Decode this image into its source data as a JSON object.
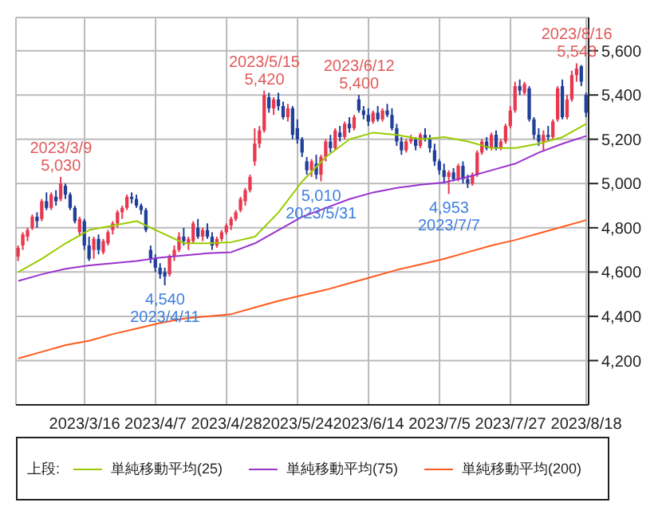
{
  "chart_data": {
    "type": "candlestick",
    "categories": [
      null,
      null,
      null,
      null,
      null,
      null,
      null,
      null,
      null,
      null,
      null,
      null,
      null,
      null,
      "2023/3/16",
      null,
      null,
      null,
      null,
      null,
      null,
      null,
      null,
      null,
      null,
      null,
      null,
      null,
      null,
      "2023/4/7",
      null,
      null,
      null,
      null,
      null,
      null,
      null,
      null,
      null,
      null,
      null,
      null,
      null,
      null,
      "2023/4/28",
      null,
      null,
      null,
      null,
      null,
      null,
      null,
      null,
      null,
      null,
      null,
      null,
      null,
      null,
      "2023/5/24",
      null,
      null,
      null,
      null,
      null,
      null,
      null,
      null,
      null,
      null,
      null,
      null,
      null,
      null,
      "2023/6/14",
      null,
      null,
      null,
      null,
      null,
      null,
      null,
      null,
      null,
      null,
      null,
      null,
      null,
      null,
      "2023/7/5",
      null,
      null,
      null,
      null,
      null,
      null,
      null,
      null,
      null,
      null,
      null,
      null,
      null,
      null,
      "2023/7/27",
      null,
      null,
      null,
      null,
      null,
      null,
      null,
      null,
      null,
      null,
      null,
      null,
      null,
      null,
      null,
      "2023/8/18"
    ],
    "ohlc": [
      [
        4670,
        4720,
        4650,
        4710
      ],
      [
        4720,
        4780,
        4700,
        4770
      ],
      [
        4760,
        4800,
        4740,
        4790
      ],
      [
        4800,
        4860,
        4790,
        4850
      ],
      [
        4850,
        4870,
        4800,
        4830
      ],
      [
        4840,
        4930,
        4830,
        4920
      ],
      [
        4920,
        4960,
        4880,
        4890
      ],
      [
        4890,
        4960,
        4880,
        4950
      ],
      [
        4940,
        4970,
        4900,
        4920
      ],
      [
        4930,
        5030,
        4920,
        5000
      ],
      [
        4990,
        5000,
        4930,
        4950
      ],
      [
        4950,
        4960,
        4880,
        4890
      ],
      [
        4890,
        4900,
        4820,
        4830
      ],
      [
        4780,
        4850,
        4760,
        4840
      ],
      [
        4830,
        4840,
        4700,
        4720
      ],
      [
        4720,
        4760,
        4650,
        4660
      ],
      [
        4700,
        4760,
        4660,
        4750
      ],
      [
        4750,
        4770,
        4680,
        4700
      ],
      [
        4690,
        4750,
        4680,
        4740
      ],
      [
        4730,
        4790,
        4720,
        4780
      ],
      [
        4790,
        4830,
        4770,
        4820
      ],
      [
        4820,
        4880,
        4800,
        4870
      ],
      [
        4870,
        4900,
        4840,
        4890
      ],
      [
        4890,
        4950,
        4880,
        4940
      ],
      [
        4940,
        4960,
        4910,
        4930
      ],
      [
        4930,
        4950,
        4890,
        4900
      ],
      [
        4900,
        4910,
        4860,
        4880
      ],
      [
        4880,
        4890,
        4780,
        4790
      ],
      [
        4700,
        4720,
        4640,
        4660
      ],
      [
        4660,
        4680,
        4600,
        4620
      ],
      [
        4620,
        4640,
        4570,
        4590
      ],
      [
        4600,
        4620,
        4540,
        4580
      ],
      [
        4590,
        4680,
        4580,
        4670
      ],
      [
        4670,
        4720,
        4650,
        4700
      ],
      [
        4700,
        4780,
        4690,
        4760
      ],
      [
        4760,
        4800,
        4720,
        4740
      ],
      [
        4730,
        4760,
        4700,
        4750
      ],
      [
        4740,
        4830,
        4730,
        4820
      ],
      [
        4800,
        4840,
        4750,
        4760
      ],
      [
        4760,
        4800,
        4740,
        4790
      ],
      [
        4790,
        4820,
        4750,
        4760
      ],
      [
        4760,
        4780,
        4700,
        4720
      ],
      [
        4720,
        4760,
        4710,
        4750
      ],
      [
        4750,
        4790,
        4740,
        4780
      ],
      [
        4780,
        4820,
        4770,
        4810
      ],
      [
        4810,
        4850,
        4790,
        4840
      ],
      [
        4840,
        4880,
        4830,
        4870
      ],
      [
        4880,
        4940,
        4870,
        4930
      ],
      [
        4920,
        4980,
        4900,
        4970
      ],
      [
        4970,
        5040,
        4960,
        5030
      ],
      [
        5100,
        5250,
        5080,
        5180
      ],
      [
        5180,
        5260,
        5160,
        5240
      ],
      [
        5240,
        5420,
        5230,
        5400
      ],
      [
        5390,
        5410,
        5320,
        5340
      ],
      [
        5340,
        5390,
        5310,
        5380
      ],
      [
        5380,
        5410,
        5330,
        5350
      ],
      [
        5350,
        5370,
        5290,
        5300
      ],
      [
        5300,
        5360,
        5280,
        5340
      ],
      [
        5340,
        5350,
        5200,
        5220
      ],
      [
        5250,
        5290,
        5180,
        5200
      ],
      [
        5200,
        5210,
        5120,
        5140
      ],
      [
        5100,
        5120,
        5040,
        5060
      ],
      [
        5060,
        5110,
        5030,
        5100
      ],
      [
        5090,
        5130,
        5020,
        5040
      ],
      [
        5040,
        5130,
        5010,
        5120
      ],
      [
        5120,
        5200,
        5100,
        5190
      ],
      [
        5190,
        5220,
        5140,
        5160
      ],
      [
        5160,
        5250,
        5150,
        5240
      ],
      [
        5230,
        5260,
        5190,
        5210
      ],
      [
        5210,
        5280,
        5200,
        5270
      ],
      [
        5270,
        5300,
        5230,
        5250
      ],
      [
        5250,
        5310,
        5240,
        5300
      ],
      [
        5380,
        5400,
        5320,
        5330
      ],
      [
        5330,
        5350,
        5290,
        5310
      ],
      [
        5310,
        5340,
        5260,
        5280
      ],
      [
        5280,
        5330,
        5270,
        5320
      ],
      [
        5320,
        5350,
        5280,
        5290
      ],
      [
        5290,
        5340,
        5280,
        5330
      ],
      [
        5330,
        5360,
        5300,
        5310
      ],
      [
        5310,
        5340,
        5240,
        5250
      ],
      [
        5250,
        5270,
        5170,
        5190
      ],
      [
        5190,
        5210,
        5130,
        5150
      ],
      [
        5150,
        5200,
        5140,
        5190
      ],
      [
        5190,
        5220,
        5180,
        5200
      ],
      [
        5200,
        5210,
        5150,
        5170
      ],
      [
        5170,
        5230,
        5160,
        5220
      ],
      [
        5220,
        5250,
        5190,
        5200
      ],
      [
        5200,
        5220,
        5140,
        5160
      ],
      [
        5150,
        5180,
        5080,
        5100
      ],
      [
        5100,
        5110,
        5040,
        5060
      ],
      [
        5060,
        5090,
        5000,
        5030
      ],
      [
        5030,
        5060,
        4953,
        5050
      ],
      [
        5050,
        5070,
        5010,
        5020
      ],
      [
        5020,
        5090,
        5010,
        5080
      ],
      [
        5080,
        5100,
        5000,
        5020
      ],
      [
        5020,
        5040,
        4980,
        5000
      ],
      [
        5000,
        5050,
        4990,
        5040
      ],
      [
        5040,
        5150,
        5030,
        5140
      ],
      [
        5140,
        5200,
        5130,
        5190
      ],
      [
        5190,
        5210,
        5150,
        5160
      ],
      [
        5160,
        5230,
        5150,
        5220
      ],
      [
        5220,
        5240,
        5150,
        5160
      ],
      [
        5160,
        5200,
        5150,
        5190
      ],
      [
        5190,
        5270,
        5180,
        5260
      ],
      [
        5260,
        5350,
        5250,
        5330
      ],
      [
        5330,
        5460,
        5320,
        5440
      ],
      [
        5440,
        5470,
        5400,
        5420
      ],
      [
        5410,
        5460,
        5400,
        5450
      ],
      [
        5430,
        5440,
        5280,
        5290
      ],
      [
        5290,
        5300,
        5200,
        5220
      ],
      [
        5220,
        5250,
        5170,
        5190
      ],
      [
        5190,
        5240,
        5150,
        5220
      ],
      [
        5220,
        5260,
        5190,
        5210
      ],
      [
        5210,
        5290,
        5200,
        5280
      ],
      [
        5290,
        5440,
        5280,
        5430
      ],
      [
        5440,
        5470,
        5290,
        5300
      ],
      [
        5300,
        5400,
        5290,
        5380
      ],
      [
        5380,
        5510,
        5370,
        5490
      ],
      [
        5490,
        5543,
        5460,
        5520
      ],
      [
        5530,
        5535,
        5440,
        5460
      ],
      [
        5400,
        5410,
        5300,
        5320
      ]
    ],
    "series": [
      {
        "name": "単純移動平均(25)",
        "type": "line",
        "color": "#99cc00",
        "values": [
          4600,
          null,
          null,
          null,
          null,
          4660,
          null,
          null,
          null,
          null,
          4730,
          null,
          null,
          null,
          null,
          4790,
          null,
          null,
          null,
          null,
          4810,
          null,
          null,
          null,
          null,
          4830,
          null,
          null,
          null,
          null,
          4780,
          null,
          null,
          null,
          null,
          4730,
          null,
          null,
          null,
          null,
          4730,
          null,
          null,
          null,
          null,
          4735,
          null,
          null,
          null,
          null,
          4760,
          null,
          null,
          null,
          null,
          4870,
          null,
          null,
          null,
          null,
          5010,
          null,
          null,
          null,
          null,
          5120,
          null,
          null,
          null,
          null,
          5200,
          null,
          null,
          null,
          null,
          5230,
          null,
          null,
          null,
          null,
          5220,
          null,
          null,
          null,
          null,
          5200,
          null,
          null,
          null,
          null,
          5210,
          null,
          null,
          null,
          null,
          5190,
          null,
          null,
          null,
          null,
          5160,
          null,
          null,
          null,
          null,
          5160,
          null,
          null,
          null,
          null,
          5180,
          null,
          null,
          null,
          null,
          5210,
          null,
          null,
          null,
          null,
          5270
        ]
      },
      {
        "name": "単純移動平均(75)",
        "type": "line",
        "color": "#9933cc",
        "values": [
          4560,
          null,
          null,
          null,
          null,
          4590,
          null,
          null,
          null,
          null,
          4615,
          null,
          null,
          null,
          null,
          4630,
          null,
          null,
          null,
          null,
          4640,
          null,
          null,
          null,
          null,
          4650,
          null,
          null,
          null,
          null,
          4665,
          null,
          null,
          null,
          null,
          4675,
          null,
          null,
          null,
          null,
          4685,
          null,
          null,
          null,
          null,
          4690,
          null,
          null,
          null,
          null,
          4730,
          null,
          null,
          null,
          null,
          4790,
          null,
          null,
          null,
          null,
          4850,
          null,
          null,
          null,
          null,
          4890,
          null,
          null,
          null,
          null,
          4930,
          null,
          null,
          null,
          null,
          4960,
          null,
          null,
          null,
          null,
          4980,
          null,
          null,
          null,
          null,
          4995,
          null,
          null,
          null,
          null,
          5005,
          null,
          null,
          null,
          null,
          5030,
          null,
          null,
          null,
          null,
          5060,
          null,
          null,
          null,
          null,
          5090,
          null,
          null,
          null,
          null,
          5140,
          null,
          null,
          null,
          null,
          5180,
          null,
          null,
          null,
          null,
          5215
        ]
      },
      {
        "name": "単純移動平均(200)",
        "type": "line",
        "color": "#ff5a1f",
        "values": [
          4210,
          null,
          null,
          null,
          null,
          4240,
          null,
          null,
          null,
          null,
          4270,
          null,
          null,
          null,
          null,
          4290,
          null,
          null,
          null,
          null,
          4320,
          null,
          null,
          null,
          null,
          4345,
          null,
          null,
          null,
          null,
          4370,
          null,
          null,
          null,
          null,
          4390,
          null,
          null,
          null,
          null,
          4400,
          null,
          null,
          null,
          null,
          4410,
          null,
          null,
          null,
          null,
          4440,
          null,
          null,
          null,
          null,
          4470,
          null,
          null,
          null,
          null,
          4495,
          null,
          null,
          null,
          null,
          4520,
          null,
          null,
          null,
          null,
          4550,
          null,
          null,
          null,
          null,
          4580,
          null,
          null,
          null,
          null,
          4610,
          null,
          null,
          null,
          null,
          4635,
          null,
          null,
          null,
          null,
          4660,
          null,
          null,
          null,
          null,
          4690,
          null,
          null,
          null,
          null,
          4720,
          null,
          null,
          null,
          null,
          4745,
          null,
          null,
          null,
          null,
          4775,
          null,
          null,
          null,
          null,
          4805,
          null,
          null,
          null,
          null,
          4835
        ]
      }
    ],
    "ylim": [
      4000,
      5750
    ],
    "yticks": [
      {
        "value": 4200,
        "label": "4,200"
      },
      {
        "value": 4400,
        "label": "4,400"
      },
      {
        "value": 4600,
        "label": "4,600"
      },
      {
        "value": 4800,
        "label": "4,800"
      },
      {
        "value": 5000,
        "label": "5,000"
      },
      {
        "value": 5200,
        "label": "5,200"
      },
      {
        "value": 5400,
        "label": "5,400"
      },
      {
        "value": 5600,
        "label": "5,600"
      }
    ],
    "grid": true,
    "legend": "bottom",
    "legend_title": "上段:",
    "annotations": [
      {
        "text": "2023/3/9\n5,030",
        "y": 5030
      },
      {
        "text": "4,540\n2023/4/11",
        "y": 4540
      },
      {
        "text": "2023/5/15\n5,420",
        "y": 5420
      },
      {
        "text": "5,010\n2023/5/31",
        "y": 5010
      },
      {
        "text": "2023/6/12\n5,400",
        "y": 5400
      },
      {
        "text": "4,953\n2023/7/7",
        "y": 4953
      },
      {
        "text": "2023/8/16\n5,543",
        "y": 5543
      }
    ]
  }
}
